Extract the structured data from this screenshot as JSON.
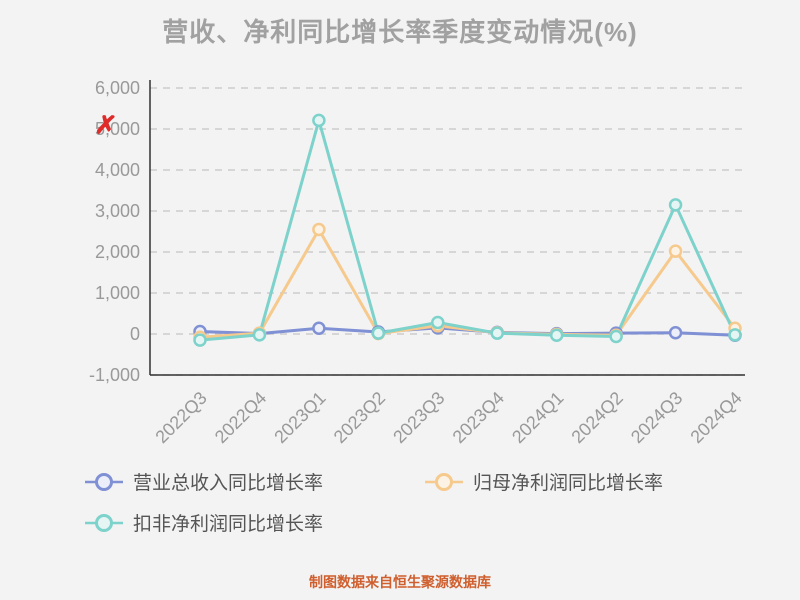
{
  "title": "营收、净利同比增长率季度变动情况(%)",
  "annotation": {
    "text": "✗"
  },
  "footer": {
    "text": "制图数据来自恒生聚源数据库",
    "color": "#cf5f2e"
  },
  "colors": {
    "background": "#f3f3f3",
    "axis": "#333333",
    "grid": "#cccccc",
    "tick_label": "#999999",
    "title": "#a1a1a1",
    "legend_text": "#555555",
    "annotation": "#e02b2b"
  },
  "chart_data": {
    "type": "line",
    "title": "营收、净利同比增长率季度变动情况(%)",
    "categories": [
      "2022Q3",
      "2022Q4",
      "2023Q1",
      "2023Q2",
      "2023Q3",
      "2023Q4",
      "2024Q1",
      "2024Q2",
      "2024Q3",
      "2024Q4"
    ],
    "series": [
      {
        "name": "营业总收入同比增长率",
        "color": "#7f90d4",
        "marker_fill": "#eceff9",
        "values": [
          60,
          10,
          140,
          50,
          150,
          40,
          10,
          20,
          30,
          -30
        ]
      },
      {
        "name": "归母净利润同比增长率",
        "color": "#f6c98d",
        "marker_fill": "#fcf3e4",
        "values": [
          -80,
          20,
          2550,
          10,
          200,
          30,
          -10,
          -30,
          2020,
          140
        ]
      },
      {
        "name": "扣非净利润同比增长率",
        "color": "#7dd2cb",
        "marker_fill": "#e4f5f3",
        "values": [
          -150,
          -20,
          5210,
          20,
          280,
          20,
          -30,
          -60,
          3150,
          -20
        ]
      }
    ],
    "xlabel": "",
    "ylabel": "",
    "ylim": [
      -1000,
      6000
    ],
    "yticks": [
      -1000,
      0,
      1000,
      2000,
      3000,
      4000,
      5000,
      6000
    ],
    "ytick_labels": [
      "-1,000",
      "0",
      "1,000",
      "2,000",
      "3,000",
      "4,000",
      "5,000",
      "6,000"
    ],
    "grid": true,
    "grid_style": "dashed",
    "legend_position": "bottom"
  }
}
